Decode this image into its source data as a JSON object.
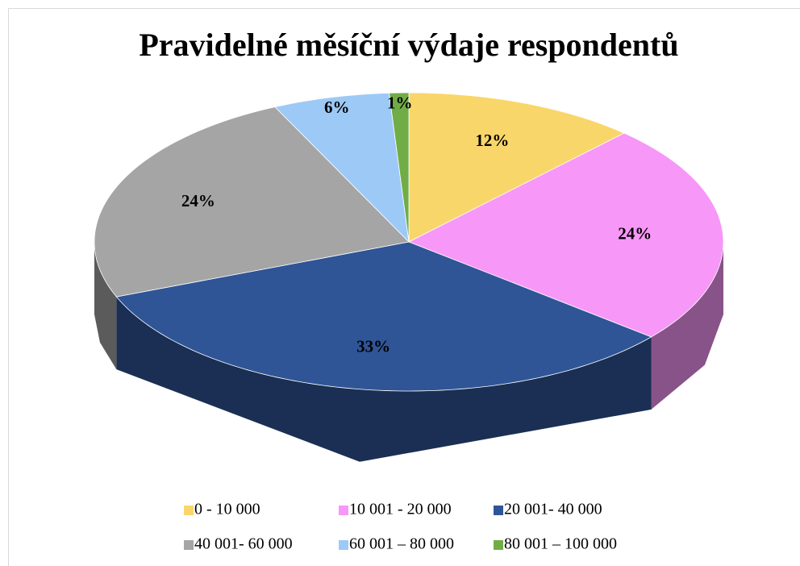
{
  "chart_data": {
    "type": "pie",
    "title": "Pravidelné měsíční výdaje respondentů",
    "categories": [
      "0 - 10 000",
      "10 001 - 20 000",
      "20 001- 40 000",
      "40 001- 60 000",
      "60 001 – 80 000",
      "80 001 – 100 000"
    ],
    "values": [
      12,
      24,
      33,
      24,
      6,
      1
    ],
    "value_labels": [
      "12%",
      "24%",
      "33%",
      "24%",
      "6%",
      "1%"
    ],
    "colors": [
      "#f9d66a",
      "#f797f7",
      "#2f5597",
      "#a5a5a5",
      "#9dc9f7",
      "#70ad47"
    ],
    "legend": "bottom"
  }
}
